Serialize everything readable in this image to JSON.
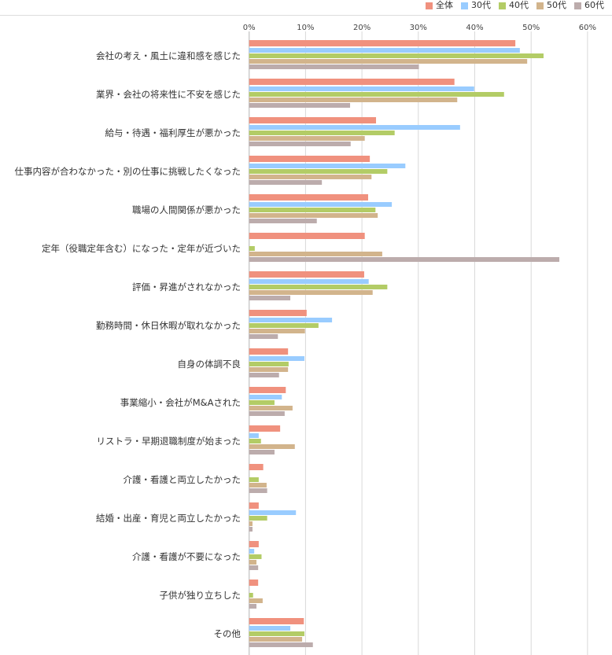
{
  "chart_data": {
    "type": "bar",
    "orientation": "horizontal",
    "title": "",
    "xlabel": "",
    "ylabel": "",
    "xlim": [
      0,
      60
    ],
    "x_ticks": [
      "0%",
      "10%",
      "20%",
      "30%",
      "40%",
      "50%",
      "60%"
    ],
    "x_tick_values": [
      0,
      10,
      20,
      30,
      40,
      50,
      60
    ],
    "grid": true,
    "legend_position": "top-right",
    "categories": [
      "会社の考え・風土に違和感を感じた",
      "業界・会社の将来性に不安を感じた",
      "給与・待遇・福利厚生が悪かった",
      "仕事内容が合わなかった・別の仕事に挑戦したくなった",
      "職場の人間関係が悪かった",
      "定年（役職定年含む）になった・定年が近づいた",
      "評価・昇進がされなかった",
      "勤務時間・休日休暇が取れなかった",
      "自身の体調不良",
      "事業縮小・会社がM&Aされた",
      "リストラ・早期退職制度が始まった",
      "介護・看護と両立したかった",
      "結婚・出産・育児と両立したかった",
      "介護・看護が不要になった",
      "子供が独り立ちした",
      "その他"
    ],
    "series": [
      {
        "name": "全体",
        "color": "#F0917E",
        "values": [
          47.2,
          36.4,
          22.5,
          21.4,
          21.1,
          20.5,
          20.4,
          10.2,
          6.9,
          6.5,
          5.5,
          2.5,
          1.7,
          1.7,
          1.6,
          9.7
        ]
      },
      {
        "name": "30代",
        "color": "#99CCFF",
        "values": [
          48.0,
          39.9,
          37.4,
          27.7,
          25.3,
          0,
          21.2,
          14.7,
          9.8,
          5.8,
          1.7,
          0,
          8.3,
          0.9,
          0,
          7.3
        ]
      },
      {
        "name": "40代",
        "color": "#B3CC66",
        "values": [
          52.2,
          45.2,
          25.8,
          24.5,
          22.4,
          1.0,
          24.5,
          12.3,
          7.0,
          4.5,
          2.1,
          1.7,
          3.2,
          2.2,
          0.7,
          9.8
        ]
      },
      {
        "name": "50代",
        "color": "#D2B48C",
        "values": [
          49.3,
          36.9,
          20.5,
          21.7,
          22.8,
          23.6,
          21.9,
          9.9,
          6.9,
          7.7,
          8.1,
          3.1,
          0.6,
          1.3,
          2.4,
          9.4
        ]
      },
      {
        "name": "60代",
        "color": "#BCACAC",
        "values": [
          30.1,
          17.9,
          18.0,
          12.9,
          12.0,
          55.0,
          7.3,
          5.1,
          5.3,
          6.3,
          4.5,
          3.2,
          0.6,
          1.6,
          1.3,
          11.3
        ]
      }
    ]
  }
}
